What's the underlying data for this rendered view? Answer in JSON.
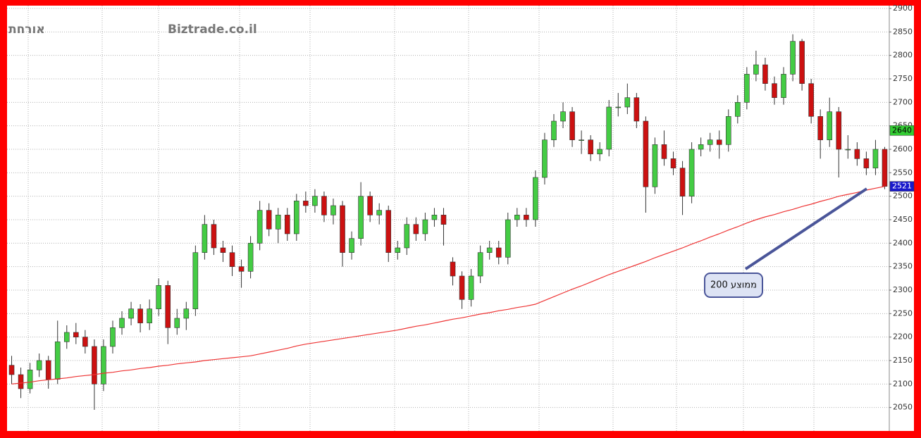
{
  "chart_data": {
    "type": "candlestick",
    "watermark": "Biztrade.co.il",
    "user_label": "אורחת",
    "annotation": "ממוצע 200",
    "ylim": [
      2000,
      2906
    ],
    "yticks": [
      2050,
      2100,
      2150,
      2200,
      2250,
      2300,
      2350,
      2400,
      2450,
      2500,
      2550,
      2600,
      2650,
      2700,
      2750,
      2800,
      2850,
      2900
    ],
    "grid": true,
    "up_color": "#44cc44",
    "down_color": "#cc1111",
    "open": [
      2140,
      2120,
      2090,
      2130,
      2150,
      2110,
      2190,
      2210,
      2200,
      2180,
      2100,
      2180,
      2220,
      2240,
      2260,
      2230,
      2260,
      2310,
      2220,
      2240,
      2260,
      2380,
      2440,
      2390,
      2380,
      2350,
      2340,
      2400,
      2470,
      2430,
      2460,
      2420,
      2490,
      2480,
      2500,
      2460,
      2480,
      2380,
      2410,
      2500,
      2460,
      2470,
      2380,
      2390,
      2440,
      2420,
      2450,
      2460,
      2360,
      2330,
      2280,
      2330,
      2380,
      2390,
      2370,
      2450,
      2460,
      2450,
      2540,
      2620,
      2660,
      2680,
      2620,
      2620,
      2590,
      2600,
      2690,
      2690,
      2710,
      2660,
      2520,
      2610,
      2580,
      2560,
      2500,
      2600,
      2610,
      2620,
      2610,
      2670,
      2700,
      2760,
      2780,
      2740,
      2710,
      2760,
      2830,
      2740,
      2670,
      2620,
      2680,
      2600,
      2600,
      2580,
      2560,
      2600
    ],
    "high": [
      2160,
      2135,
      2145,
      2165,
      2160,
      2235,
      2225,
      2230,
      2215,
      2195,
      2195,
      2235,
      2255,
      2275,
      2270,
      2280,
      2325,
      2320,
      2260,
      2275,
      2395,
      2460,
      2450,
      2405,
      2395,
      2365,
      2415,
      2490,
      2485,
      2475,
      2475,
      2505,
      2510,
      2515,
      2510,
      2495,
      2490,
      2425,
      2530,
      2510,
      2485,
      2480,
      2405,
      2455,
      2455,
      2465,
      2475,
      2475,
      2370,
      2340,
      2345,
      2395,
      2405,
      2405,
      2465,
      2475,
      2475,
      2555,
      2635,
      2675,
      2700,
      2690,
      2640,
      2630,
      2615,
      2705,
      2720,
      2740,
      2720,
      2670,
      2625,
      2640,
      2595,
      2575,
      2615,
      2625,
      2635,
      2640,
      2685,
      2715,
      2775,
      2810,
      2795,
      2755,
      2775,
      2845,
      2835,
      2750,
      2685,
      2710,
      2690,
      2630,
      2615,
      2595,
      2620,
      2605
    ],
    "low": [
      2100,
      2070,
      2080,
      2115,
      2090,
      2100,
      2175,
      2185,
      2165,
      2045,
      2085,
      2165,
      2205,
      2225,
      2210,
      2215,
      2245,
      2185,
      2205,
      2215,
      2245,
      2365,
      2375,
      2360,
      2330,
      2305,
      2325,
      2385,
      2415,
      2400,
      2405,
      2405,
      2465,
      2465,
      2445,
      2440,
      2350,
      2365,
      2395,
      2445,
      2440,
      2360,
      2365,
      2375,
      2405,
      2405,
      2435,
      2395,
      2310,
      2260,
      2265,
      2315,
      2365,
      2355,
      2355,
      2435,
      2435,
      2435,
      2525,
      2605,
      2645,
      2605,
      2590,
      2575,
      2575,
      2585,
      2670,
      2675,
      2645,
      2465,
      2505,
      2565,
      2545,
      2460,
      2485,
      2585,
      2595,
      2580,
      2595,
      2655,
      2685,
      2745,
      2725,
      2695,
      2695,
      2745,
      2725,
      2655,
      2580,
      2605,
      2540,
      2580,
      2565,
      2545,
      2545,
      2515
    ],
    "close": [
      2120,
      2090,
      2130,
      2150,
      2110,
      2190,
      2210,
      2200,
      2180,
      2100,
      2180,
      2220,
      2240,
      2260,
      2230,
      2260,
      2310,
      2220,
      2240,
      2260,
      2380,
      2440,
      2390,
      2380,
      2350,
      2340,
      2400,
      2470,
      2430,
      2460,
      2420,
      2490,
      2480,
      2500,
      2460,
      2480,
      2380,
      2410,
      2500,
      2460,
      2470,
      2380,
      2390,
      2440,
      2420,
      2450,
      2460,
      2440,
      2330,
      2280,
      2330,
      2380,
      2390,
      2370,
      2450,
      2460,
      2450,
      2540,
      2620,
      2660,
      2680,
      2620,
      2620,
      2590,
      2600,
      2690,
      2690,
      2710,
      2660,
      2520,
      2610,
      2580,
      2560,
      2500,
      2600,
      2610,
      2620,
      2610,
      2670,
      2700,
      2760,
      2780,
      2740,
      2710,
      2760,
      2830,
      2740,
      2670,
      2620,
      2680,
      2600,
      2600,
      2580,
      2560,
      2600,
      2521
    ],
    "ma_color": "#ee3333",
    "ma": [
      2100,
      2102,
      2104,
      2107,
      2109,
      2111,
      2113,
      2116,
      2118,
      2120,
      2123,
      2125,
      2128,
      2130,
      2133,
      2135,
      2138,
      2140,
      2143,
      2145,
      2147,
      2150,
      2152,
      2154,
      2156,
      2158,
      2160,
      2164,
      2168,
      2172,
      2176,
      2181,
      2185,
      2188,
      2191,
      2194,
      2197,
      2200,
      2203,
      2206,
      2209,
      2212,
      2215,
      2219,
      2223,
      2226,
      2230,
      2234,
      2238,
      2241,
      2245,
      2249,
      2252,
      2256,
      2259,
      2263,
      2266,
      2270,
      2278,
      2286,
      2294,
      2302,
      2309,
      2317,
      2325,
      2333,
      2340,
      2347,
      2354,
      2361,
      2369,
      2376,
      2383,
      2390,
      2398,
      2405,
      2413,
      2420,
      2428,
      2435,
      2443,
      2450,
      2456,
      2461,
      2467,
      2472,
      2478,
      2483,
      2489,
      2494,
      2500,
      2504,
      2508,
      2513,
      2517,
      2521
    ],
    "markers": [
      {
        "value": 2640,
        "color": "#33cc33",
        "text_color": "#000000"
      },
      {
        "value": 2521,
        "color": "#1a1acc",
        "text_color": "#ffffff"
      }
    ]
  }
}
